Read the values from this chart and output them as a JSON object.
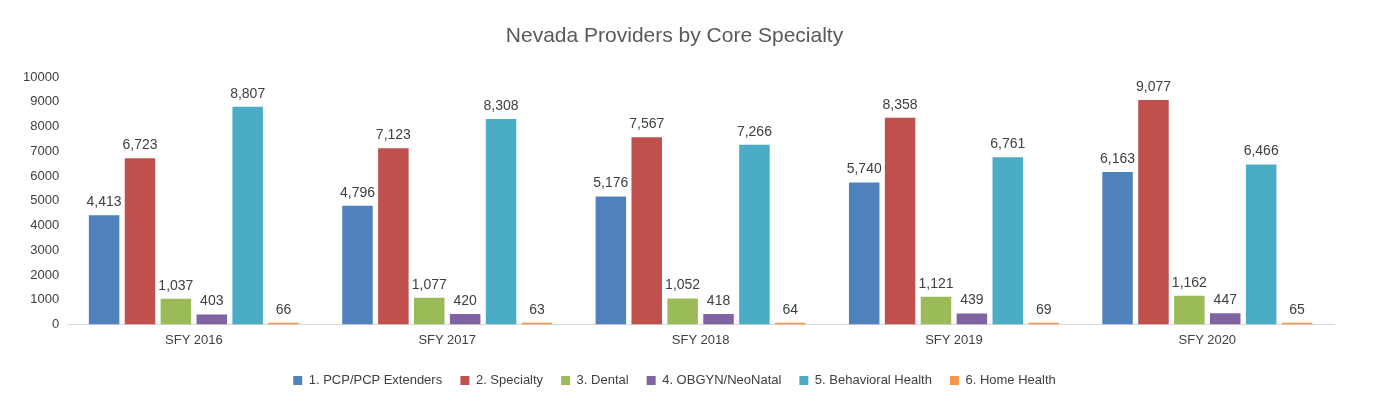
{
  "chart_data": {
    "type": "bar",
    "title": "Nevada Providers by Core Specialty",
    "categories": [
      "SFY 2016",
      "SFY 2017",
      "SFY 2018",
      "SFY 2019",
      "SFY 2020"
    ],
    "series": [
      {
        "name": "1. PCP/PCP Extenders",
        "color": "#4f81bd",
        "values": [
          4413,
          4796,
          5176,
          5740,
          6163
        ],
        "value_labels": [
          "4,413",
          "4,796",
          "5,176",
          "5,740",
          "6,163"
        ]
      },
      {
        "name": "2. Specialty",
        "color": "#c0504d",
        "values": [
          6723,
          7123,
          7567,
          8358,
          9077
        ],
        "value_labels": [
          "6,723",
          "7,123",
          "7,567",
          "8,358",
          "9,077"
        ]
      },
      {
        "name": "3. Dental",
        "color": "#9bbb59",
        "values": [
          1037,
          1077,
          1052,
          1121,
          1162
        ],
        "value_labels": [
          "1,037",
          "1,077",
          "1,052",
          "1,121",
          "1,162"
        ]
      },
      {
        "name": "4. OBGYN/NeoNatal",
        "color": "#8064a2",
        "values": [
          403,
          420,
          418,
          439,
          447
        ],
        "value_labels": [
          "403",
          "420",
          "418",
          "439",
          "447"
        ]
      },
      {
        "name": "5. Behavioral Health",
        "color": "#4bacc6",
        "values": [
          8807,
          8308,
          7266,
          6761,
          6466
        ],
        "value_labels": [
          "8,807",
          "8,308",
          "7,266",
          "6,761",
          "6,466"
        ]
      },
      {
        "name": "6. Home Health",
        "color": "#f79646",
        "values": [
          66,
          63,
          64,
          69,
          65
        ],
        "value_labels": [
          "66",
          "63",
          "64",
          "69",
          "65"
        ]
      }
    ],
    "ylim": [
      0,
      10000
    ],
    "yticks": [
      0,
      1000,
      2000,
      3000,
      4000,
      5000,
      6000,
      7000,
      8000,
      9000,
      10000
    ],
    "grid": false,
    "legend": "bottom"
  }
}
